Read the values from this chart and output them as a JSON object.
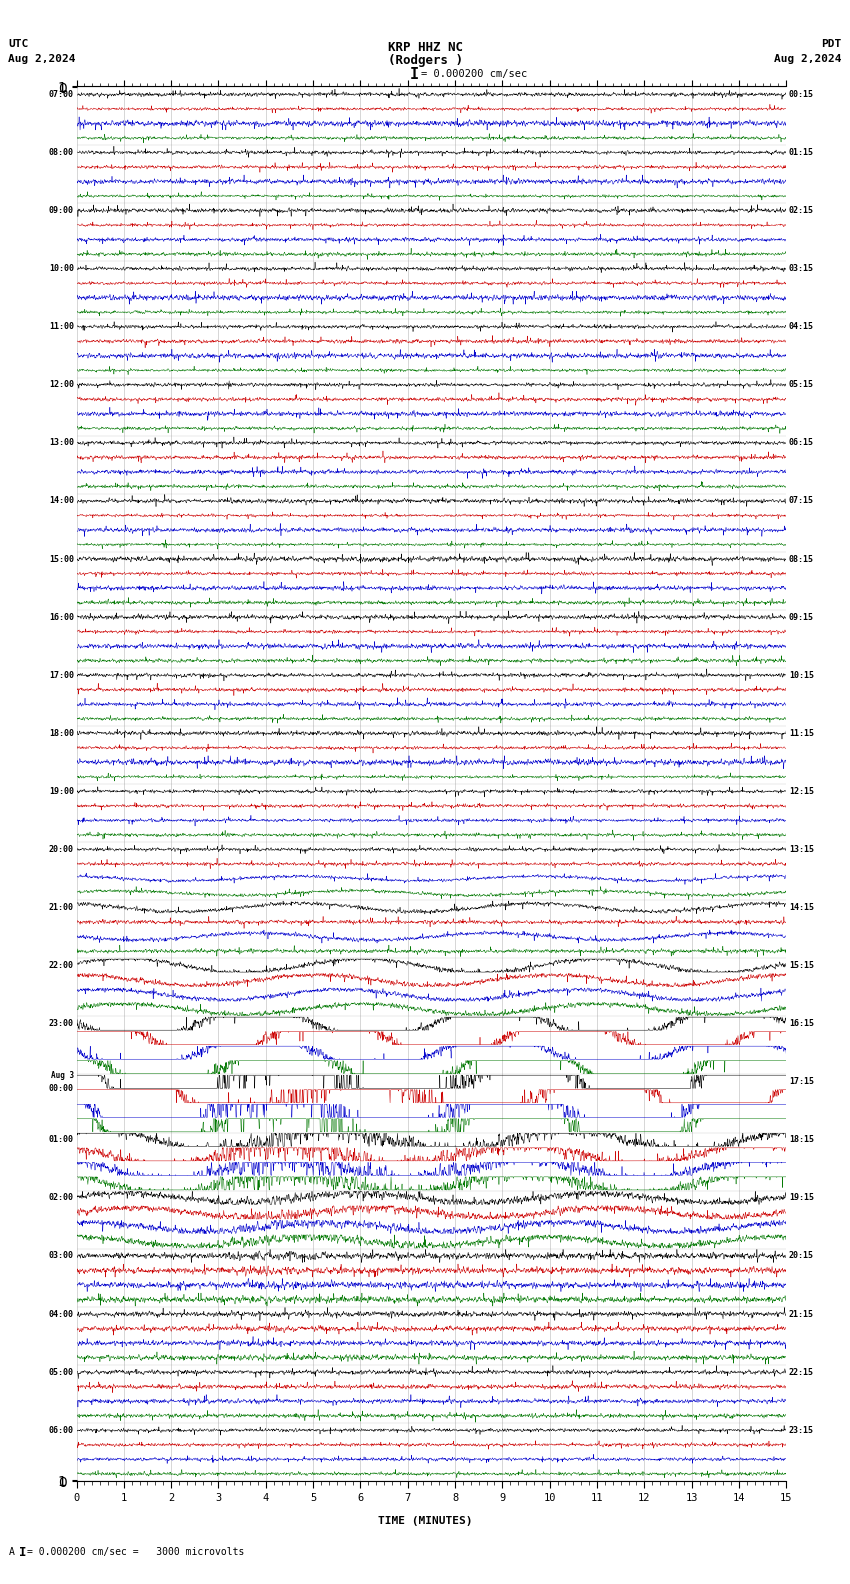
{
  "title_line1": "KRP HHZ NC",
  "title_line2": "(Rodgers )",
  "scale_label": "= 0.000200 cm/sec",
  "utc_label": "UTC",
  "pdt_label": "PDT",
  "utc_date": "Aug 2,2024",
  "pdt_date": "Aug 2,2024",
  "bottom_label": "A    = 0.000200 cm/sec =   3000 microvolts",
  "xlabel": "TIME (MINUTES)",
  "utc_times_left": [
    "07:00",
    "08:00",
    "09:00",
    "10:00",
    "11:00",
    "12:00",
    "13:00",
    "14:00",
    "15:00",
    "16:00",
    "17:00",
    "18:00",
    "19:00",
    "20:00",
    "21:00",
    "22:00",
    "23:00",
    "Aug 3\n00:00",
    "01:00",
    "02:00",
    "03:00",
    "04:00",
    "05:00",
    "06:00"
  ],
  "pdt_times_right": [
    "00:15",
    "01:15",
    "02:15",
    "03:15",
    "04:15",
    "05:15",
    "06:15",
    "07:15",
    "08:15",
    "09:15",
    "10:15",
    "11:15",
    "12:15",
    "13:15",
    "14:15",
    "15:15",
    "16:15",
    "17:15",
    "18:15",
    "19:15",
    "20:15",
    "21:15",
    "22:15",
    "23:15"
  ],
  "n_rows": 24,
  "traces_per_row": 4,
  "trace_colors": [
    "#000000",
    "#cc0000",
    "#0000cc",
    "#007700"
  ],
  "bg_color": "#ffffff",
  "grid_color": "#888888",
  "minutes_ticks": [
    0,
    1,
    2,
    3,
    4,
    5,
    6,
    7,
    8,
    9,
    10,
    11,
    12,
    13,
    14,
    15
  ],
  "xmin": 0,
  "xmax": 15,
  "fig_width": 8.5,
  "fig_height": 15.84
}
